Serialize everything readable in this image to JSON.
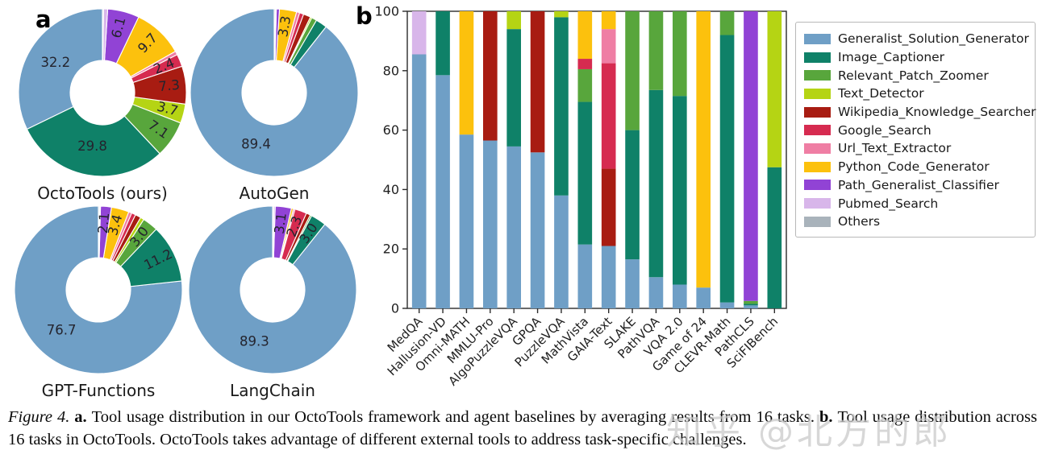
{
  "panel_a_label": "a",
  "panel_b_label": "b",
  "tools": [
    {
      "label": "Generalist_Solution_Generator",
      "color": "#6f9fc6"
    },
    {
      "label": "Image_Captioner",
      "color": "#0f8168"
    },
    {
      "label": "Relevant_Patch_Zoomer",
      "color": "#58a63c"
    },
    {
      "label": "Text_Detector",
      "color": "#b5d414"
    },
    {
      "label": "Wikipedia_Knowledge_Searcher",
      "color": "#a81c12"
    },
    {
      "label": "Google_Search",
      "color": "#d62b50"
    },
    {
      "label": "Url_Text_Extractor",
      "color": "#ef7ea4"
    },
    {
      "label": "Python_Code_Generator",
      "color": "#fcc10d"
    },
    {
      "label": "Path_Generalist_Classifier",
      "color": "#9143d5"
    },
    {
      "label": "Pubmed_Search",
      "color": "#d8b6ea"
    },
    {
      "label": "Others",
      "color": "#a9b3bb"
    }
  ],
  "chart_data": [
    {
      "type": "pie",
      "title": "OctoTools (ours)",
      "labels": [
        "Generalist_Solution_Generator",
        "Image_Captioner",
        "Relevant_Patch_Zoomer",
        "Text_Detector",
        "Wikipedia_Knowledge_Searcher",
        "Google_Search",
        "Url_Text_Extractor",
        "Python_Code_Generator",
        "Path_Generalist_Classifier",
        "Pubmed_Search",
        "Others"
      ],
      "values": [
        32.2,
        29.8,
        7.1,
        3.7,
        7.3,
        2.4,
        0.7,
        9.7,
        6.1,
        0.8,
        0.2
      ],
      "value_labels": [
        "32.2",
        "29.8",
        "7.1",
        "3.7",
        "7.3",
        "2.4",
        "",
        "9.7",
        "6.1",
        "",
        ""
      ]
    },
    {
      "type": "pie",
      "title": "AutoGen",
      "labels": [
        "Generalist_Solution_Generator",
        "Image_Captioner",
        "Relevant_Patch_Zoomer",
        "Text_Detector",
        "Wikipedia_Knowledge_Searcher",
        "Google_Search",
        "Url_Text_Extractor",
        "Python_Code_Generator",
        "Path_Generalist_Classifier",
        "Pubmed_Search",
        "Others"
      ],
      "values": [
        89.4,
        2.2,
        1.0,
        0.3,
        1.4,
        0.8,
        0.6,
        3.3,
        0.6,
        0.2,
        0.2
      ],
      "value_labels": [
        "89.4",
        "",
        "",
        "",
        "",
        "",
        "",
        "3.3",
        "",
        "",
        ""
      ]
    },
    {
      "type": "pie",
      "title": "GPT-Functions",
      "labels": [
        "Generalist_Solution_Generator",
        "Image_Captioner",
        "Relevant_Patch_Zoomer",
        "Text_Detector",
        "Wikipedia_Knowledge_Searcher",
        "Google_Search",
        "Url_Text_Extractor",
        "Python_Code_Generator",
        "Path_Generalist_Classifier",
        "Pubmed_Search",
        "Others"
      ],
      "values": [
        76.7,
        11.2,
        3.0,
        0.7,
        1.1,
        0.8,
        0.6,
        3.4,
        2.1,
        0.2,
        0.2
      ],
      "value_labels": [
        "76.7",
        "11.2",
        "3.0",
        "",
        "",
        "",
        "",
        "3.4",
        "2.1",
        "",
        ""
      ]
    },
    {
      "type": "pie",
      "title": "LangChain",
      "labels": [
        "Generalist_Solution_Generator",
        "Image_Captioner",
        "Relevant_Patch_Zoomer",
        "Text_Detector",
        "Wikipedia_Knowledge_Searcher",
        "Google_Search",
        "Url_Text_Extractor",
        "Python_Code_Generator",
        "Path_Generalist_Classifier",
        "Pubmed_Search",
        "Others"
      ],
      "values": [
        89.3,
        3.0,
        0.3,
        0.0,
        0.8,
        2.3,
        0.3,
        0.4,
        3.1,
        0.3,
        0.2
      ],
      "value_labels": [
        "89.3",
        "3.0",
        "",
        "",
        "",
        "2.3",
        "",
        "",
        "3.1",
        "",
        ""
      ]
    },
    {
      "type": "bar",
      "stacked": true,
      "categories": [
        "MedQA",
        "Hallusion-VD",
        "Omni-MATH",
        "MMLU-Pro",
        "AlgoPuzzleVQA",
        "GPQA",
        "PuzzleVQA",
        "MathVista",
        "GAIA-Text",
        "SLAKE",
        "PathVQA",
        "VQA 2.0",
        "Game of 24",
        "CLEVR-Math",
        "PathCLS",
        "SciFIBench"
      ],
      "ylim": [
        0,
        100
      ],
      "yticks": [
        0,
        20,
        40,
        60,
        80,
        100
      ],
      "legend_position": "right",
      "series": [
        {
          "name": "Generalist_Solution_Generator",
          "values": [
            85.5,
            78.5,
            58.5,
            56.5,
            54.5,
            52.5,
            38,
            21.5,
            21,
            16.5,
            10.5,
            8,
            7,
            2,
            1,
            0
          ]
        },
        {
          "name": "Image_Captioner",
          "values": [
            0,
            21.5,
            0,
            0,
            39.5,
            0,
            60,
            48,
            0,
            43.5,
            63,
            63.5,
            0,
            90,
            0.5,
            47.5
          ]
        },
        {
          "name": "Relevant_Patch_Zoomer",
          "values": [
            0,
            0,
            0,
            0,
            0,
            0,
            0,
            11,
            0,
            40,
            26.5,
            28.5,
            0,
            8,
            1,
            0
          ]
        },
        {
          "name": "Text_Detector",
          "values": [
            0,
            0,
            0,
            0,
            6,
            0,
            2,
            0,
            0,
            0,
            0,
            0,
            0,
            0,
            0,
            52.5
          ]
        },
        {
          "name": "Wikipedia_Knowledge_Searcher",
          "values": [
            0,
            0,
            0,
            43.5,
            0,
            47.5,
            0,
            0,
            26,
            0,
            0,
            0,
            0,
            0,
            0,
            0
          ]
        },
        {
          "name": "Google_Search",
          "values": [
            0,
            0,
            0,
            0,
            0,
            0,
            0,
            3.5,
            35.5,
            0,
            0,
            0,
            0,
            0,
            0,
            0
          ]
        },
        {
          "name": "Url_Text_Extractor",
          "values": [
            0,
            0,
            0,
            0,
            0,
            0,
            0,
            0,
            11.5,
            0,
            0,
            0,
            0,
            0,
            0,
            0
          ]
        },
        {
          "name": "Python_Code_Generator",
          "values": [
            0,
            0,
            41.5,
            0,
            0,
            0,
            0,
            16,
            6,
            0,
            0,
            0,
            93,
            0,
            0,
            0
          ]
        },
        {
          "name": "Path_Generalist_Classifier",
          "values": [
            0,
            0,
            0,
            0,
            0,
            0,
            0,
            0,
            0,
            0,
            0,
            0,
            0,
            0,
            97.5,
            0
          ]
        },
        {
          "name": "Pubmed_Search",
          "values": [
            14.5,
            0,
            0,
            0,
            0,
            0,
            0,
            0,
            0,
            0,
            0,
            0,
            0,
            0,
            0,
            0
          ]
        },
        {
          "name": "Others",
          "values": [
            0,
            0,
            0,
            0,
            0,
            0,
            0,
            0,
            0,
            0,
            0,
            0,
            0,
            0,
            0,
            0
          ]
        }
      ]
    }
  ],
  "caption": {
    "figure_label": "Figure 4.",
    "a_label": "a.",
    "a_text": "Tool usage distribution in our OctoTools framework and agent baselines by averaging results from 16 tasks.",
    "b_label": "b.",
    "b_text": "Tool usage distribution across 16 tasks in OctoTools. OctoTools takes advantage of different external tools to address task-specific challenges."
  },
  "watermark": "知乎 @北方的郎"
}
